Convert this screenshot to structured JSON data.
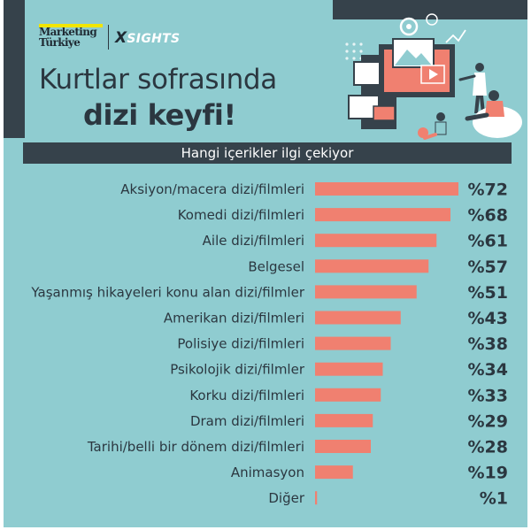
{
  "brand": {
    "marketing_line1": "Marketing",
    "marketing_line2": "Türkiye",
    "xsights_x": "X",
    "xsights_rest": "SIGHTS"
  },
  "header": {
    "title_line1": "Kurtlar sofrasında",
    "title_line2": "dizi keyfi!",
    "subtitle": "Hangi içerikler ilgi çekiyor"
  },
  "colors": {
    "background": "#8fccd0",
    "dark": "#36424b",
    "bar": "#f08070",
    "accent_yellow": "#f2e500"
  },
  "chart_data": {
    "type": "bar",
    "orientation": "horizontal",
    "categories": [
      "Aksiyon/macera dizi/filmleri",
      "Komedi dizi/filmleri",
      "Aile dizi/filmleri",
      "Belgesel",
      "Yaşanmış hikayeleri konu alan dizi/filmler",
      "Amerikan dizi/filmleri",
      "Polisiye dizi/filmleri",
      "Psikolojik dizi/filmler",
      "Korku dizi/filmleri",
      "Dram dizi/filmleri",
      "Tarihi/belli bir dönem dizi/filmleri",
      "Animasyon",
      "Diğer"
    ],
    "values": [
      72,
      68,
      61,
      57,
      51,
      43,
      38,
      34,
      33,
      29,
      28,
      19,
      1
    ],
    "value_labels": [
      "%72",
      "%68",
      "%61",
      "%57",
      "%51",
      "%43",
      "%38",
      "%34",
      "%33",
      "%29",
      "%28",
      "%19",
      "%1"
    ],
    "xlim": [
      0,
      72
    ],
    "grid": false,
    "legend": "none"
  }
}
